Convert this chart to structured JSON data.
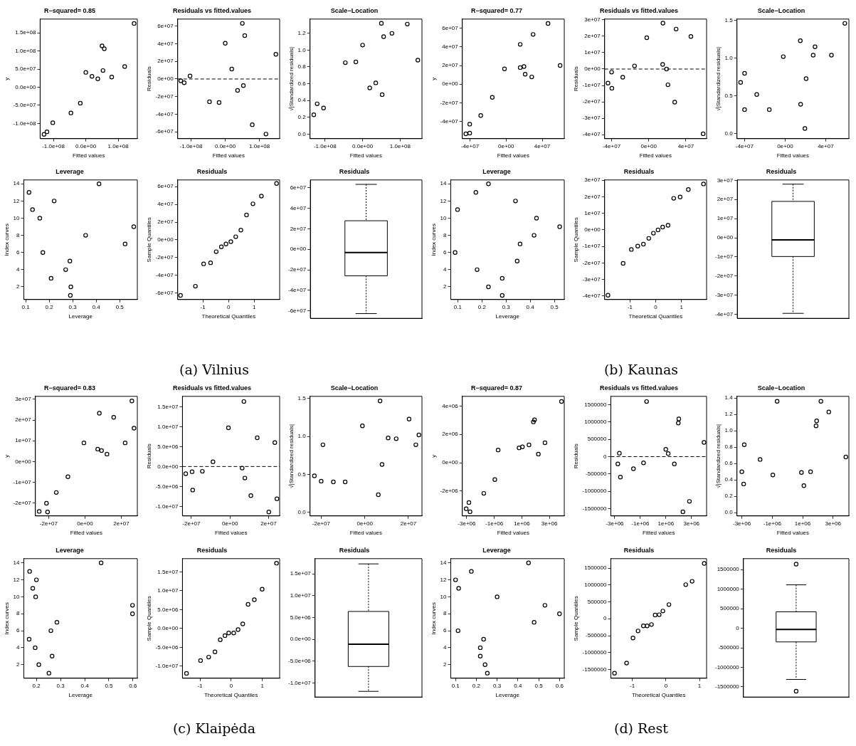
{
  "chart_data": [
    {
      "type": "scatter",
      "title": "R−squared= 0.85",
      "xlabel": "Fitted values",
      "ylabel": "y",
      "marker": "circle",
      "color": "#000000",
      "x": [
        -129000000.0,
        -120000000.0,
        -102000000.0,
        -46000000.0,
        -17000000.0,
        0,
        19000000.0,
        37000000.0,
        50000000.0,
        57000000.0,
        53000000.0,
        80000000.0,
        120000000.0,
        149000000.0
      ],
      "values": [
        -130000000.0,
        -123000000.0,
        -98000000.0,
        -71000000.0,
        -44000000.0,
        41000000.0,
        30000000.0,
        23000000.0,
        114000000.0,
        106000000.0,
        46000000.0,
        28000000.0,
        57000000.0,
        176000000.0
      ],
      "xlim": [
        -141000000.0,
        159000000.0
      ],
      "ylim": [
        -142000000.0,
        188000000.0
      ],
      "xticks": [
        {
          "value": -100000000.0,
          "label": "-1.0e+08"
        },
        {
          "value": 0,
          "label": "0.0e+00"
        },
        {
          "value": 100000000.0,
          "label": "1.0e+08"
        }
      ],
      "yticks": [
        {
          "value": -100000000.0,
          "label": "-1.0e+08"
        },
        {
          "value": -50000000.0,
          "label": "-5.0e+07"
        },
        {
          "value": 0,
          "label": "0.0e+00"
        },
        {
          "value": 50000000.0,
          "label": "5.0e+07"
        },
        {
          "value": 100000000.0,
          "label": "1.0e+08"
        },
        {
          "value": 150000000.0,
          "label": "1.5e+08"
        }
      ]
    },
    {
      "type": "scatter",
      "title": "Residuals vs fitted.values",
      "xlabel": "Fitted values",
      "ylabel": "Residuals",
      "marker": "circle",
      "color": "#000000",
      "x": [
        -130000000.0,
        -120000000.0,
        -103000000.0,
        -46000000.0,
        -18000000.0,
        0,
        19000000.0,
        36000000.0,
        50000000.0,
        57000000.0,
        53000000.0,
        79000000.0,
        119000000.0,
        148000000.0
      ],
      "values": [
        -2000000.0,
        -4300000.0,
        3500000.0,
        -25800000.0,
        -26700000.0,
        40600000.0,
        11300000.0,
        -13000000.0,
        63200000.0,
        49300000.0,
        -7500000.0,
        -51900000.0,
        -62600000.0,
        28100000.0
      ],
      "xlim": [
        -139000000.0,
        159000000.0
      ],
      "ylim": [
        -67800000.0,
        68100000.0
      ],
      "xticks": [
        {
          "value": -100000000.0,
          "label": "-1.0e+08"
        },
        {
          "value": 0,
          "label": "0.0e+00"
        },
        {
          "value": 100000000.0,
          "label": "1.0e+08"
        }
      ],
      "yticks": [
        {
          "value": -60000000.0,
          "label": "-6e+07"
        },
        {
          "value": -40000000.0,
          "label": "-4e+07"
        },
        {
          "value": -20000000.0,
          "label": "-2e+07"
        },
        {
          "value": 0,
          "label": "0e+00"
        },
        {
          "value": 20000000.0,
          "label": "2e+07"
        },
        {
          "value": 40000000.0,
          "label": "4e+07"
        },
        {
          "value": 60000000.0,
          "label": "6e+07"
        }
      ],
      "ref_lines": [
        {
          "axis": "y",
          "value": 0,
          "line_style": "dashed"
        }
      ]
    },
    {
      "type": "scatter",
      "title": "Scale−Location",
      "xlabel": "Fitted values",
      "ylabel": "√|Standardized residuals|",
      "marker": "circle",
      "color": "#000000",
      "x": [
        -130000000.0,
        -121000000.0,
        -104000000.0,
        -46000000.0,
        -18000000.0,
        0,
        19000000.0,
        35000000.0,
        50000000.0,
        56000000.0,
        52000000.0,
        78000000.0,
        119000000.0,
        147000000.0
      ],
      "values": [
        0.23,
        0.36,
        0.31,
        0.85,
        0.86,
        1.06,
        0.55,
        0.61,
        1.32,
        1.16,
        0.47,
        1.2,
        1.31,
        0.88
      ],
      "xlim": [
        -140000000.0,
        158000000.0
      ],
      "ylim": [
        -0.055,
        1.37
      ],
      "xticks": [
        {
          "value": -100000000.0,
          "label": "-1.0e+08"
        },
        {
          "value": 0,
          "label": "0.0e+00"
        },
        {
          "value": 100000000.0,
          "label": "1.0e+08"
        }
      ],
      "yticks": [
        {
          "value": 0,
          "label": "0.0"
        },
        0.2,
        0.4,
        0.6,
        0.8,
        {
          "value": 1,
          "label": "1.0"
        },
        1.2
      ]
    },
    {
      "type": "scatter",
      "title": "R−squared= 0.77",
      "xlabel": "Fitted values",
      "ylabel": "y",
      "marker": "circle",
      "color": "#000000",
      "x": [
        -44600000.0,
        -40300000.0,
        -40300000.0,
        -28100000.0,
        -15300000.0,
        -1800000.0,
        15600000.0,
        15600000.0,
        19800000.0,
        21100000.0,
        28400000.0,
        29900000.0,
        46400000.0,
        59800000.0
      ],
      "values": [
        -53400000.0,
        -52600000.0,
        -43000000.0,
        -33700000.0,
        -14200000.0,
        16400000.0,
        17800000.0,
        42700000.0,
        18900000.0,
        10700000.0,
        7700000.0,
        53400000.0,
        65200000.0,
        20000000.0
      ],
      "xlim": [
        -48500000.0,
        64400000.0
      ],
      "ylim": [
        -58600000.0,
        69900000.0
      ],
      "xticks": [
        {
          "value": -40000000.0,
          "label": "-4e+07"
        },
        {
          "value": 0,
          "label": "0e+00"
        },
        {
          "value": 40000000.0,
          "label": "4e+07"
        }
      ],
      "yticks": [
        {
          "value": -40000000.0,
          "label": "-4e+07"
        },
        {
          "value": -20000000.0,
          "label": "-2e+07"
        },
        {
          "value": 0,
          "label": "0e+00"
        },
        {
          "value": 20000000.0,
          "label": "2e+07"
        },
        {
          "value": 40000000.0,
          "label": "4e+07"
        },
        {
          "value": 60000000.0,
          "label": "6e+07"
        }
      ]
    },
    {
      "type": "scatter",
      "title": "Residuals vs fitted.values",
      "xlabel": "Fitted values",
      "ylabel": "Residuals",
      "marker": "circle",
      "color": "#000000",
      "x": [
        -43900000.0,
        -40000000.0,
        -39700000.0,
        -28000000.0,
        -15300000.0,
        -2100000.0,
        15300000.0,
        15000000.0,
        19200000.0,
        20700000.0,
        28000000.0,
        29500000.0,
        45400000.0,
        58600000.0
      ],
      "values": [
        -8600000.0,
        -1900000.0,
        -11700000.0,
        -5000000.0,
        1900000.0,
        19100000.0,
        28000000.0,
        2800000.0,
        0,
        -9600000.0,
        -20200000.0,
        24400000.0,
        19900000.0,
        -39500000.0
      ],
      "xlim": [
        -47500000.0,
        62300000.0
      ],
      "ylim": [
        -42500000.0,
        30500000.0
      ],
      "xticks": [
        {
          "value": -40000000.0,
          "label": "-4e+07"
        },
        {
          "value": 0,
          "label": "0e+00"
        },
        {
          "value": 40000000.0,
          "label": "4e+07"
        }
      ],
      "yticks": [
        {
          "value": -40000000.0,
          "label": "-4e+07"
        },
        {
          "value": -30000000.0,
          "label": "-3e+07"
        },
        {
          "value": -20000000.0,
          "label": "-2e+07"
        },
        {
          "value": -10000000.0,
          "label": "-1e+07"
        },
        {
          "value": 0,
          "label": "0e+00"
        },
        {
          "value": 10000000.0,
          "label": "1e+07"
        },
        {
          "value": 20000000.0,
          "label": "2e+07"
        },
        {
          "value": 30000000.0,
          "label": "3e+07"
        }
      ],
      "ref_lines": [
        {
          "axis": "y",
          "value": 0,
          "line_style": "dashed"
        }
      ]
    },
    {
      "type": "scatter",
      "title": "Scale−Location",
      "xlabel": "Fitted values",
      "ylabel": "√|Standardized residuals|",
      "marker": "circle",
      "color": "#000000",
      "x": [
        -43900000.0,
        -40000000.0,
        -40000000.0,
        -28000000.0,
        -15600000.0,
        -1800000.0,
        15000000.0,
        15300000.0,
        19500000.0,
        20700000.0,
        27700000.0,
        29500000.0,
        45700000.0,
        58900000.0
      ],
      "values": [
        0.68,
        0.8,
        0.32,
        0.52,
        0.32,
        1.02,
        1.23,
        0.39,
        0.07,
        0.73,
        1.04,
        1.15,
        1.04,
        1.46
      ],
      "xlim": [
        -47500000.0,
        62900000.0
      ],
      "ylim": [
        -0.064,
        1.517
      ],
      "xticks": [
        {
          "value": -40000000.0,
          "label": "-4e+07"
        },
        {
          "value": 0,
          "label": "0e+00"
        },
        {
          "value": 40000000.0,
          "label": "4e+07"
        }
      ],
      "yticks": [
        {
          "value": 0,
          "label": "0.0"
        },
        0.5,
        {
          "value": 1,
          "label": "1.0"
        },
        1.5
      ]
    },
    {
      "type": "scatter",
      "title": "Leverage",
      "xlabel": "Leverage",
      "ylabel": "Index curves",
      "marker": "circle",
      "color": "#000000",
      "x": [
        0.114,
        0.129,
        0.16,
        0.173,
        0.208,
        0.221,
        0.27,
        0.288,
        0.292,
        0.29,
        0.355,
        0.412,
        0.523,
        0.56
      ],
      "values": [
        13,
        11,
        10,
        6,
        3,
        12,
        4,
        5,
        2,
        1,
        8,
        14,
        7,
        9
      ],
      "xlim": [
        0.092,
        0.575
      ],
      "ylim": [
        0.52,
        14.45
      ],
      "xticks": [
        0.1,
        0.2,
        0.3,
        0.4,
        0.5
      ],
      "yticks": [
        2,
        4,
        6,
        8,
        10,
        12,
        14
      ]
    },
    {
      "type": "scatter",
      "title": "Residuals",
      "xlabel": "Theoretical Quantiles",
      "ylabel": "Sample Quantiles",
      "marker": "circle",
      "color": "#000000",
      "x": [
        -1.87,
        -1.29,
        -0.97,
        -0.7,
        -0.48,
        -0.28,
        -0.1,
        0.09,
        0.28,
        0.48,
        0.7,
        0.95,
        1.28,
        1.87
      ],
      "values": [
        -62600000.0,
        -52200000.0,
        -27000000.0,
        -25800000.0,
        -13300000.0,
        -7800000.0,
        -4600000.0,
        -2000000.0,
        3500000.0,
        11000000.0,
        28100000.0,
        40600000.0,
        49300000.0,
        63500000.0
      ],
      "xlim": [
        -1.98,
        1.99
      ],
      "ylim": [
        -67200000.0,
        67500000.0
      ],
      "xticks": [
        -1,
        0,
        1
      ],
      "yticks": [
        {
          "value": -60000000.0,
          "label": "-6e+07"
        },
        {
          "value": -40000000.0,
          "label": "-4e+07"
        },
        {
          "value": -20000000.0,
          "label": "-2e+07"
        },
        {
          "value": 0,
          "label": "0e+00"
        },
        {
          "value": 20000000.0,
          "label": "2e+07"
        },
        {
          "value": 40000000.0,
          "label": "4e+07"
        },
        {
          "value": 60000000.0,
          "label": "6e+07"
        }
      ],
      "annotations": [
        "(a) Vilnius"
      ]
    },
    {
      "type": "box",
      "title": "Residuals",
      "color": "#000000",
      "categories": [
        null
      ],
      "boxes": [
        {
          "low": -62600000.0,
          "q1": -25800000.0,
          "median": -3200000.0,
          "q3": 27800000.0,
          "high": 63200000.0
        }
      ],
      "ylim": [
        -67200000.0,
        67500000.0
      ],
      "yticks": [
        {
          "value": -60000000.0,
          "label": "-6e+07"
        },
        {
          "value": -40000000.0,
          "label": "-4e+07"
        },
        {
          "value": -20000000.0,
          "label": "-2e+07"
        },
        {
          "value": 0,
          "label": "0e+00"
        },
        {
          "value": 20000000.0,
          "label": "2e+07"
        },
        {
          "value": 40000000.0,
          "label": "4e+07"
        },
        {
          "value": 60000000.0,
          "label": "6e+07"
        }
      ],
      "tick_labels": "y"
    },
    {
      "type": "scatter",
      "title": "Leverage",
      "xlabel": "Leverage",
      "ylabel": "Index curves",
      "marker": "circle",
      "color": "#000000",
      "x": [
        0.089,
        0.099,
        0.175,
        0.18,
        0.227,
        0.227,
        0.284,
        0.284,
        0.339,
        0.346,
        0.358,
        0.416,
        0.426,
        0.522
      ],
      "values": [
        6,
        11,
        13,
        4,
        14,
        2,
        3,
        1,
        12,
        5,
        7,
        8,
        10,
        9
      ],
      "xlim": [
        0.071,
        0.541
      ],
      "ylim": [
        0.52,
        14.45
      ],
      "xticks": [
        0.1,
        0.2,
        0.3,
        0.4,
        0.5
      ],
      "yticks": [
        2,
        4,
        6,
        8,
        10,
        12,
        14
      ]
    },
    {
      "type": "scatter",
      "title": "Residuals",
      "xlabel": "Theoretical Quantiles",
      "ylabel": "Sample Quantiles",
      "marker": "circle",
      "color": "#000000",
      "x": [
        -1.86,
        -1.27,
        -0.95,
        -0.7,
        -0.48,
        -0.27,
        -0.09,
        0.09,
        0.27,
        0.48,
        0.7,
        0.95,
        1.27,
        1.86
      ],
      "values": [
        -39500000.0,
        -20200000.0,
        -11800000.0,
        -9800000.0,
        -8600000.0,
        -5100000.0,
        -2000000.0,
        0,
        1700000.0,
        2800000.0,
        19100000.0,
        19900000.0,
        24400000.0,
        27800000.0
      ],
      "xlim": [
        -1.99,
        1.98
      ],
      "ylim": [
        -42100000.0,
        30200000.0
      ],
      "xticks": [
        -1,
        0,
        1
      ],
      "yticks": [
        {
          "value": -40000000.0,
          "label": "-4e+07"
        },
        {
          "value": -30000000.0,
          "label": "-3e+07"
        },
        {
          "value": -20000000.0,
          "label": "-2e+07"
        },
        {
          "value": -10000000.0,
          "label": "-1e+07"
        },
        {
          "value": 0,
          "label": "0e+00"
        },
        {
          "value": 10000000.0,
          "label": "1e+07"
        },
        {
          "value": 20000000.0,
          "label": "2e+07"
        },
        {
          "value": 30000000.0,
          "label": "3e+07"
        }
      ],
      "annotations": [
        "(b) Kaunas"
      ]
    },
    {
      "type": "box",
      "title": "Residuals",
      "color": "#000000",
      "categories": [
        null
      ],
      "boxes": [
        {
          "low": -39500000.0,
          "q1": -9800000.0,
          "median": -1100000.0,
          "q3": 19000000.0,
          "high": 28000000.0
        }
      ],
      "ylim": [
        -42100000.0,
        30200000.0
      ],
      "yticks": [
        {
          "value": -40000000.0,
          "label": "-4e+07"
        },
        {
          "value": -30000000.0,
          "label": "-3e+07"
        },
        {
          "value": -20000000.0,
          "label": "-2e+07"
        },
        {
          "value": -10000000.0,
          "label": "-1e+07"
        },
        {
          "value": 0,
          "label": "0e+00"
        },
        {
          "value": 10000000.0,
          "label": "1e+07"
        },
        {
          "value": 20000000.0,
          "label": "2e+07"
        },
        {
          "value": 30000000.0,
          "label": "3e+07"
        }
      ],
      "tick_labels": "y"
    },
    {
      "type": "scatter",
      "title": "R−squared= 0.83",
      "xlabel": "Fitted values",
      "ylabel": "y",
      "marker": "circle",
      "color": "#000000",
      "x": [
        -25200000.0,
        -20600000.0,
        -21200000.0,
        -15800000.0,
        -9400000.0,
        -600000.0,
        7000000.0,
        9100000.0,
        7900000.0,
        12100000.0,
        15800000.0,
        22100000.0,
        25800000.0,
        27000000.0
      ],
      "values": [
        -24000000.0,
        -24300000.0,
        -20100000.0,
        -14900000.0,
        -7300000.0,
        9000000.0,
        6000000.0,
        5300000.0,
        23300000.0,
        3600000.0,
        21300000.0,
        9000000.0,
        29200000.0,
        16100000.0
      ],
      "xlim": [
        -27300000.0,
        28800000.0
      ],
      "ylim": [
        -26200000.0,
        31400000.0
      ],
      "xticks": [
        {
          "value": -20000000.0,
          "label": "-2e+07"
        },
        {
          "value": 0,
          "label": "0e+00"
        },
        {
          "value": 20000000.0,
          "label": "2e+07"
        }
      ],
      "yticks": [
        {
          "value": -20000000.0,
          "label": "-2e+07"
        },
        {
          "value": -10000000.0,
          "label": "-1e+07"
        },
        {
          "value": 0,
          "label": "0e+00"
        },
        {
          "value": 10000000.0,
          "label": "1e+07"
        },
        {
          "value": 20000000.0,
          "label": "2e+07"
        },
        {
          "value": 30000000.0,
          "label": "3e+07"
        }
      ]
    },
    {
      "type": "scatter",
      "title": "Residuals vs fitted.values",
      "xlabel": "Fitted values",
      "ylabel": "Residuals",
      "marker": "circle",
      "color": "#000000",
      "x": [
        -22900000.0,
        -19600000.0,
        -19300000.0,
        -14300000.0,
        -8800000.0,
        -800000.0,
        6300000.0,
        7200000.0,
        7700000.0,
        10800000.0,
        14100000.0,
        20100000.0,
        23200000.0,
        24300000.0
      ],
      "values": [
        -1800000.0,
        -1300000.0,
        -5900000.0,
        -1200000.0,
        1200000.0,
        9700000.0,
        -400000.0,
        16300000.0,
        -2900000.0,
        -7300000.0,
        7200000.0,
        -11400000.0,
        6000000.0,
        -8100000.0
      ],
      "xlim": [
        -24600000.0,
        25700000.0
      ],
      "ylim": [
        -12400000.0,
        17600000.0
      ],
      "xticks": [
        {
          "value": -20000000.0,
          "label": "-2e+07"
        },
        {
          "value": 0,
          "label": "0e+00"
        },
        {
          "value": 20000000.0,
          "label": "2e+07"
        }
      ],
      "yticks": [
        {
          "value": -10000000.0,
          "label": "-1.0e+07"
        },
        {
          "value": -5000000.0,
          "label": "-5.0e+06"
        },
        {
          "value": 0,
          "label": "0.0e+00"
        },
        {
          "value": 5000000.0,
          "label": "5.0e+06"
        },
        {
          "value": 10000000.0,
          "label": "1.0e+07"
        },
        {
          "value": 15000000.0,
          "label": "1.5e+07"
        }
      ],
      "ref_lines": [
        {
          "axis": "y",
          "value": 0,
          "line_style": "dashed"
        }
      ]
    },
    {
      "type": "scatter",
      "title": "Scale−Location",
      "xlabel": "Fitted values",
      "ylabel": "√|Standardized residuals|",
      "marker": "circle",
      "color": "#000000",
      "x": [
        -23100000.0,
        -20000000.0,
        -19200000.0,
        -14400000.0,
        -9000000.0,
        -1100000.0,
        6200000.0,
        7000000.0,
        7900000.0,
        10700000.0,
        14400000.0,
        20300000.0,
        23400000.0,
        24800000.0
      ],
      "values": [
        0.48,
        0.41,
        0.89,
        0.4,
        0.4,
        1.14,
        0.23,
        1.47,
        0.63,
        0.98,
        0.97,
        1.23,
        0.89,
        1.02
      ],
      "xlim": [
        -25100000.0,
        26200000.0
      ],
      "ylim": [
        -0.05,
        1.53
      ],
      "xticks": [
        {
          "value": -20000000.0,
          "label": "-2e+07"
        },
        {
          "value": 0,
          "label": "0e+00"
        },
        {
          "value": 20000000.0,
          "label": "2e+07"
        }
      ],
      "yticks": [
        {
          "value": 0,
          "label": "0.0"
        },
        0.5,
        {
          "value": 1,
          "label": "1.0"
        },
        1.5
      ]
    },
    {
      "type": "scatter",
      "title": "R−squared= 0.87",
      "xlabel": "Fitted values",
      "ylabel": "y",
      "marker": "circle",
      "color": "#000000",
      "x": [
        -3040000.0,
        -2760000.0,
        -2840000.0,
        -1760000.0,
        -960000.0,
        -720000.0,
        800000.0,
        1040000.0,
        1520000.0,
        1840000.0,
        1920000.0,
        2200000.0,
        2680000.0,
        3880000.0
      ],
      "values": [
        -3240000.0,
        -3460000.0,
        -2810000.0,
        -2160000.0,
        -1190000.0,
        900000.0,
        1050000.0,
        1120000.0,
        1260000.0,
        2880000.0,
        3030000.0,
        610000.0,
        1410000.0,
        4320000.0
      ],
      "xlim": [
        -3320000.0,
        4080000.0
      ],
      "ylim": [
        -3750000.0,
        4680000.0
      ],
      "xticks": [
        {
          "value": -3000000.0,
          "label": "-3e+06"
        },
        {
          "value": -1000000.0,
          "label": "-1e+06"
        },
        {
          "value": 1000000.0,
          "label": "1e+06"
        },
        {
          "value": 3000000.0,
          "label": "3e+06"
        }
      ],
      "yticks": [
        {
          "value": -2000000.0,
          "label": "-2e+06"
        },
        {
          "value": 0,
          "label": "0e+00"
        },
        {
          "value": 2000000.0,
          "label": "2e+06"
        },
        {
          "value": 4000000.0,
          "label": "4e+06"
        }
      ]
    },
    {
      "type": "scatter",
      "title": "Residuals vs fitted.values",
      "xlabel": "Fitted values",
      "ylabel": "Residuals",
      "marker": "circle",
      "color": "#000000",
      "x": [
        -2760000.0,
        -2640000.0,
        -2560000.0,
        -1540000.0,
        -750000.0,
        -510000.0,
        990000.0,
        1180000.0,
        1660000.0,
        1970000.0,
        2010000.0,
        2330000.0,
        2840000.0,
        3980000.0
      ],
      "values": [
        -210000.0,
        100000.0,
        -590000.0,
        -350000.0,
        -180000.0,
        1590000.0,
        210000.0,
        90000.0,
        -210000.0,
        970000.0,
        1090000.0,
        -1590000.0,
        -1290000.0,
        410000.0
      ],
      "xlim": [
        -3310000.0,
        4180000.0
      ],
      "ylim": [
        -1710000.0,
        1740000.0
      ],
      "xticks": [
        {
          "value": -3000000.0,
          "label": "-3e+06"
        },
        {
          "value": -1000000.0,
          "label": "-1e+06"
        },
        {
          "value": 1000000.0,
          "label": "1e+06"
        },
        {
          "value": 3000000.0,
          "label": "3e+06"
        }
      ],
      "yticks": [
        -1500000,
        -1000000,
        -500000,
        0,
        500000,
        1000000,
        1500000
      ],
      "ref_lines": [
        {
          "axis": "y",
          "value": 0,
          "line_style": "dashed"
        }
      ]
    },
    {
      "type": "scatter",
      "title": "Scale−Location",
      "xlabel": "Fitted values",
      "ylabel": "√|Standardized residuals|",
      "marker": "circle",
      "color": "#000000",
      "x": [
        -3000000.0,
        -2840000.0,
        -2880000.0,
        -1800000.0,
        -960000.0,
        -680000.0,
        920000.0,
        1080000.0,
        1520000.0,
        1880000.0,
        1920000.0,
        2200000.0,
        2720000.0,
        3840000.0
      ],
      "values": [
        0.5,
        0.83,
        0.35,
        0.65,
        0.46,
        1.36,
        0.49,
        0.33,
        0.5,
        1.06,
        1.12,
        1.36,
        1.23,
        0.68
      ],
      "xlim": [
        -3320000.0,
        4040000.0
      ],
      "ylim": [
        -0.04,
        1.42
      ],
      "xticks": [
        {
          "value": -3000000.0,
          "label": "-3e+06"
        },
        {
          "value": -1000000.0,
          "label": "-1e+06"
        },
        {
          "value": 1000000.0,
          "label": "1e+06"
        },
        {
          "value": 3000000.0,
          "label": "3e+06"
        }
      ],
      "yticks": [
        {
          "value": 0,
          "label": "0.0"
        },
        0.2,
        0.4,
        0.6,
        0.8,
        {
          "value": 1,
          "label": "1.0"
        },
        1.2,
        1.4
      ]
    },
    {
      "type": "scatter",
      "title": "Leverage",
      "xlabel": "Leverage",
      "ylabel": "Index curves",
      "marker": "circle",
      "color": "#000000",
      "x": [
        0.172,
        0.2,
        0.185,
        0.197,
        0.285,
        0.17,
        0.195,
        0.21,
        0.26,
        0.265,
        0.252,
        0.468,
        0.598,
        0.598
      ],
      "values": [
        13,
        12,
        11,
        10,
        7,
        5,
        4,
        2,
        6,
        3,
        1,
        14,
        9,
        8
      ],
      "xlim": [
        0.148,
        0.618
      ],
      "ylim": [
        0.4,
        14.5
      ],
      "xticks": [
        0.2,
        0.3,
        0.4,
        0.5,
        0.6
      ],
      "yticks": [
        2,
        4,
        6,
        8,
        10,
        12,
        14
      ]
    },
    {
      "type": "scatter",
      "title": "Residuals",
      "xlabel": "Theoretical Quantiles",
      "ylabel": "Sample Quantiles",
      "marker": "circle",
      "color": "#000000",
      "x": [
        -1.43,
        -0.98,
        -0.72,
        -0.52,
        -0.35,
        -0.2,
        -0.08,
        0.08,
        0.22,
        0.37,
        0.54,
        0.74,
        0.99,
        1.45
      ],
      "values": [
        -11900000.0,
        -8500000.0,
        -7600000.0,
        -6200000.0,
        -3000000.0,
        -1900000.0,
        -1200000.0,
        -1200000.0,
        -300000.0,
        1200000.0,
        6400000.0,
        7600000.0,
        10400000.0,
        17300000.0
      ],
      "xlim": [
        -1.56,
        1.55
      ],
      "ylim": [
        -13200000.0,
        18500000.0
      ],
      "xticks": [
        -1,
        0,
        1
      ],
      "yticks": [
        {
          "value": -10000000.0,
          "label": "-1.0e+07"
        },
        {
          "value": -5000000.0,
          "label": "-5.0e+06"
        },
        {
          "value": 0,
          "label": "0.0e+00"
        },
        {
          "value": 5000000.0,
          "label": "5.0e+06"
        },
        {
          "value": 10000000.0,
          "label": "1.0e+07"
        },
        {
          "value": 15000000.0,
          "label": "1.5e+07"
        }
      ],
      "annotations": [
        "(c) Klaipėda"
      ]
    },
    {
      "type": "box",
      "title": "Residuals",
      "color": "#000000",
      "categories": [
        null
      ],
      "boxes": [
        {
          "low": -11900000.0,
          "q1": -6200000.0,
          "median": -1100000.0,
          "q3": 6400000.0,
          "high": 17300000.0
        }
      ],
      "ylim": [
        -13200000.0,
        18500000.0
      ],
      "yticks": [
        {
          "value": -10000000.0,
          "label": "-1.0e+07"
        },
        {
          "value": -5000000.0,
          "label": "-5.0e+06"
        },
        {
          "value": 0,
          "label": "0.0e+00"
        },
        {
          "value": 5000000.0,
          "label": "5.0e+06"
        },
        {
          "value": 10000000.0,
          "label": "1.0e+07"
        },
        {
          "value": 15000000.0,
          "label": "1.5e+07"
        }
      ],
      "tick_labels": "y"
    },
    {
      "type": "scatter",
      "title": "Leverage",
      "xlabel": "Leverage",
      "ylabel": "Index curves",
      "marker": "circle",
      "color": "#000000",
      "x": [
        0.1,
        0.115,
        0.112,
        0.176,
        0.235,
        0.219,
        0.219,
        0.242,
        0.253,
        0.3,
        0.451,
        0.478,
        0.53,
        0.6
      ],
      "values": [
        12,
        11,
        6,
        13,
        5,
        4,
        3,
        2,
        1,
        10,
        14,
        7,
        9,
        8
      ],
      "xlim": [
        0.077,
        0.623
      ],
      "ylim": [
        0.4,
        14.5
      ],
      "xticks": [
        0.1,
        0.2,
        0.3,
        0.4,
        0.5,
        0.6
      ],
      "yticks": [
        2,
        4,
        6,
        8,
        10,
        12,
        14
      ]
    },
    {
      "type": "scatter",
      "title": "Residuals",
      "xlabel": "Theoretical Quantiles",
      "ylabel": "Sample Quantiles",
      "marker": "circle",
      "color": "#000000",
      "x": [
        -1.53,
        -1.17,
        -0.98,
        -0.83,
        -0.67,
        -0.56,
        -0.43,
        -0.32,
        -0.2,
        -0.09,
        0.09,
        0.59,
        0.78,
        1.14
      ],
      "values": [
        -1610000.0,
        -1310000.0,
        -570000.0,
        -360000.0,
        -210000.0,
        -210000.0,
        -170000.0,
        110000.0,
        120000.0,
        230000.0,
        420000.0,
        1010000.0,
        1110000.0,
        1640000.0
      ],
      "xlim": [
        -1.64,
        1.21
      ],
      "ylim": [
        -1760000.0,
        1780000.0
      ],
      "xticks": [
        -1,
        0,
        1
      ],
      "yticks": [
        -1500000,
        -1000000,
        -500000,
        0,
        500000,
        1000000,
        1500000
      ],
      "annotations": [
        "(d) Rest"
      ]
    },
    {
      "type": "box",
      "title": "Residuals",
      "color": "#000000",
      "categories": [
        null
      ],
      "boxes": [
        {
          "low": -1310000.0,
          "q1": -350000.0,
          "median": -30000.0,
          "q3": 420000.0,
          "high": 1110000.0,
          "outliers": [
            1640000.0,
            -1610000.0
          ]
        }
      ],
      "ylim": [
        -1760000.0,
        1780000.0
      ],
      "yticks": [
        -1500000,
        -1000000,
        -500000,
        0,
        500000,
        1000000,
        1500000
      ],
      "tick_labels": "y"
    }
  ]
}
